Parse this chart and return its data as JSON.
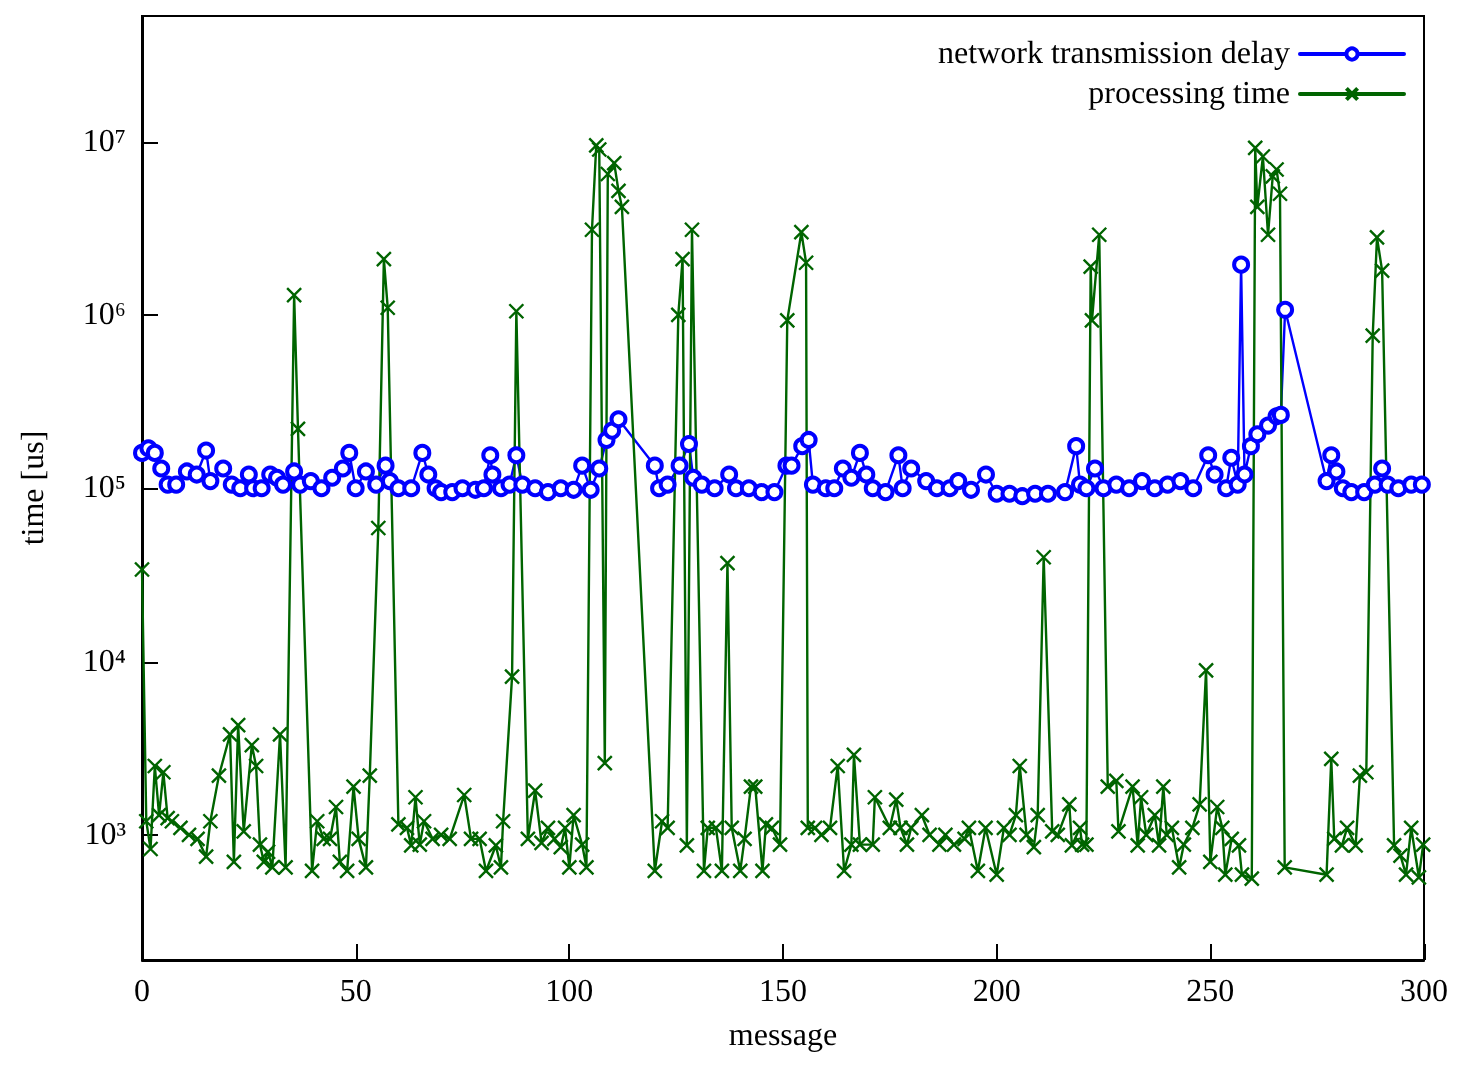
{
  "chart_data": {
    "type": "line",
    "xlabel": "message",
    "ylabel": "time [us]",
    "log": "y",
    "grid": false,
    "legend": "top right",
    "line_style": "solid",
    "xlim": [
      0,
      300
    ],
    "xticks": [
      0,
      50,
      100,
      150,
      200,
      250,
      300
    ],
    "ylim": [
      190,
      53000000
    ],
    "yticks": [
      {
        "value": 1000,
        "label": "10³"
      },
      {
        "value": 10000,
        "label": "10⁴"
      },
      {
        "value": 100000,
        "label": "10⁵"
      },
      {
        "value": 1000000,
        "label": "10⁶"
      },
      {
        "value": 10000000,
        "label": "10⁷"
      }
    ],
    "series": [
      {
        "name": "network transmission delay",
        "color": "#0000ff",
        "marker": "circle",
        "x": [
          0,
          1.5,
          3,
          4.5,
          6,
          8,
          10.5,
          12.8,
          15,
          16,
          19,
          21,
          23,
          25,
          26,
          28,
          30,
          31.6,
          33,
          35.6,
          37,
          39.5,
          42,
          44.5,
          47,
          48.5,
          50,
          52.4,
          54.8,
          57,
          58,
          60,
          63,
          65.6,
          67,
          68.7,
          70,
          72.6,
          75,
          78,
          80,
          81.5,
          82,
          84,
          86,
          87.6,
          89,
          92,
          95,
          98,
          101,
          103,
          105,
          107,
          108.7,
          110,
          111.5,
          120,
          121,
          123,
          125.8,
          128,
          129,
          131,
          134,
          137.4,
          139,
          142,
          145,
          148,
          150.8,
          152,
          154.5,
          156,
          157,
          160,
          162,
          164,
          166,
          168,
          169.5,
          171,
          174,
          177,
          178,
          180,
          183.5,
          186,
          189,
          191,
          194,
          197.5,
          200,
          203,
          206,
          209,
          212,
          216,
          218.6,
          219.5,
          221,
          223,
          225,
          228,
          231,
          234,
          237,
          240,
          243,
          246,
          249.5,
          251,
          253.7,
          254.9,
          256.4,
          257.2,
          258,
          259.5,
          261,
          263.5,
          265.5,
          266.5,
          267.5,
          277.2,
          278.3,
          279.5,
          281,
          283,
          286,
          288.5,
          290.2,
          291.5,
          294,
          297,
          299.5
        ],
        "values": [
          160000,
          170000,
          160000,
          130000,
          105000,
          105000,
          125000,
          120000,
          165000,
          110000,
          130000,
          105000,
          100000,
          120000,
          100000,
          100000,
          120000,
          115000,
          105000,
          125000,
          105000,
          110000,
          100000,
          115000,
          130000,
          160000,
          100000,
          125000,
          105000,
          135000,
          110000,
          100000,
          100000,
          160000,
          120000,
          100000,
          95000,
          95000,
          100000,
          98000,
          100000,
          155000,
          120000,
          100000,
          105000,
          155000,
          105000,
          100000,
          95000,
          100000,
          98000,
          135000,
          98000,
          130000,
          190000,
          215000,
          250000,
          135000,
          100000,
          105000,
          135000,
          180000,
          115000,
          105000,
          100000,
          120000,
          100000,
          100000,
          95000,
          95000,
          135000,
          135000,
          175000,
          190000,
          105000,
          100000,
          100000,
          130000,
          115000,
          160000,
          120000,
          100000,
          95000,
          155000,
          100000,
          130000,
          110000,
          100000,
          100000,
          110000,
          98000,
          120000,
          93000,
          93000,
          90000,
          93000,
          93000,
          95000,
          175000,
          105000,
          100000,
          130000,
          100000,
          105000,
          100000,
          110000,
          100000,
          105000,
          110000,
          100000,
          155000,
          120000,
          100000,
          150000,
          105000,
          1950000,
          120000,
          175000,
          205000,
          230000,
          260000,
          265000,
          1070000,
          110000,
          155000,
          125000,
          100000,
          95000,
          95000,
          105000,
          130000,
          105000,
          100000,
          105000,
          105000
        ]
      },
      {
        "name": "processing time",
        "color": "#006400",
        "marker": "cross",
        "x": [
          0,
          1,
          2,
          3,
          4,
          5,
          6,
          7,
          9,
          11,
          13,
          15,
          16,
          18,
          20.6,
          21.5,
          22.5,
          23.8,
          25.7,
          26.7,
          27.6,
          28.5,
          29.5,
          30.5,
          32.3,
          33.6,
          35.6,
          36.5,
          39.8,
          41,
          42.5,
          44,
          45.4,
          46.3,
          48,
          49.5,
          50.7,
          52.4,
          53.3,
          55.3,
          56.6,
          57.5,
          60,
          62,
          63,
          64,
          65,
          66,
          68,
          70,
          72,
          75.4,
          77,
          79,
          80.5,
          82.8,
          84,
          84.5,
          86.6,
          87.6,
          90.3,
          92,
          93.5,
          95,
          96.5,
          98,
          99,
          100,
          101,
          103,
          104,
          105.3,
          106.3,
          107,
          108.3,
          109,
          110.5,
          111.5,
          112.3,
          120,
          121.7,
          123,
          125.5,
          126.5,
          127.5,
          128.7,
          131.5,
          132.4,
          134.3,
          135.7,
          137,
          138,
          140,
          141,
          142.5,
          143.5,
          145.2,
          146,
          147.4,
          149.3,
          151,
          154.3,
          155.4,
          155.8,
          157.5,
          159,
          161,
          162.8,
          164.3,
          166,
          166.6,
          168,
          171,
          171.5,
          175,
          176.5,
          177.5,
          179,
          180,
          182.5,
          184.3,
          186.6,
          188,
          190,
          192.5,
          193.5,
          195.6,
          197.4,
          200,
          201.7,
          203,
          204.5,
          205.4,
          207,
          208.7,
          209.6,
          211,
          213,
          214.3,
          217,
          217.6,
          219.5,
          220,
          221,
          222,
          222.3,
          224,
          226,
          228,
          228.5,
          231.8,
          233,
          233.8,
          235,
          237,
          238,
          239,
          239.8,
          241,
          242.7,
          243.8,
          245.8,
          247.5,
          249,
          250,
          251.6,
          252.8,
          253.5,
          255,
          256.7,
          257.4,
          259.7,
          260.5,
          261,
          262.3,
          263.5,
          264.6,
          265.5,
          266.3,
          267.4,
          277.2,
          278.3,
          279,
          280.8,
          282,
          284,
          285,
          286.5,
          288,
          289,
          290.2,
          293,
          294.5,
          295.8,
          297,
          298.8,
          299.8
        ],
        "values": [
          34000,
          1200,
          830,
          2500,
          1300,
          2300,
          1250,
          1200,
          1100,
          1000,
          950,
          750,
          1200,
          2200,
          3800,
          700,
          4300,
          1050,
          3300,
          2500,
          880,
          700,
          800,
          650,
          3800,
          650,
          1300000,
          220000,
          620,
          1200,
          950,
          950,
          1450,
          700,
          620,
          1900,
          950,
          650,
          2200,
          59000,
          2100000,
          1100000,
          1150,
          1100,
          870,
          1650,
          880,
          1200,
          950,
          1000,
          950,
          1700,
          950,
          950,
          620,
          870,
          650,
          1200,
          8200,
          1050000,
          950,
          1800,
          900,
          1100,
          950,
          850,
          1100,
          650,
          1300,
          880,
          650,
          3100000,
          9500000,
          9000000,
          2600,
          6500000,
          7500000,
          5200000,
          4200000,
          620,
          1200,
          1100,
          1000000,
          2100000,
          870,
          3100000,
          620,
          1100,
          1100,
          620,
          37000,
          1100,
          620,
          950,
          1900,
          1900,
          620,
          1150,
          1100,
          880,
          930000,
          3000000,
          2000000,
          1100,
          1100,
          1000,
          1100,
          2500,
          620,
          880,
          2900,
          880,
          880,
          1650,
          1100,
          1600,
          1100,
          880,
          1100,
          1300,
          1000,
          880,
          1000,
          880,
          950,
          1100,
          620,
          1100,
          590,
          1100,
          1000,
          1300,
          2500,
          1000,
          850,
          1300,
          40000,
          1050,
          1000,
          1500,
          870,
          1100,
          880,
          880,
          1900000,
          930000,
          2900000,
          1900,
          2050,
          1050,
          1900,
          870,
          1650,
          1000,
          1300,
          870,
          1900,
          1000,
          1100,
          650,
          880,
          1100,
          1500,
          8900,
          700,
          1450,
          1100,
          590,
          950,
          870,
          590,
          560,
          9200000,
          4200000,
          8200000,
          2900000,
          6300000,
          6900000,
          5000000,
          650,
          590,
          2750,
          950,
          870,
          1100,
          870,
          2200,
          2300,
          760000,
          2800000,
          1800000,
          870,
          760,
          590,
          1100,
          570,
          880
        ]
      }
    ]
  }
}
